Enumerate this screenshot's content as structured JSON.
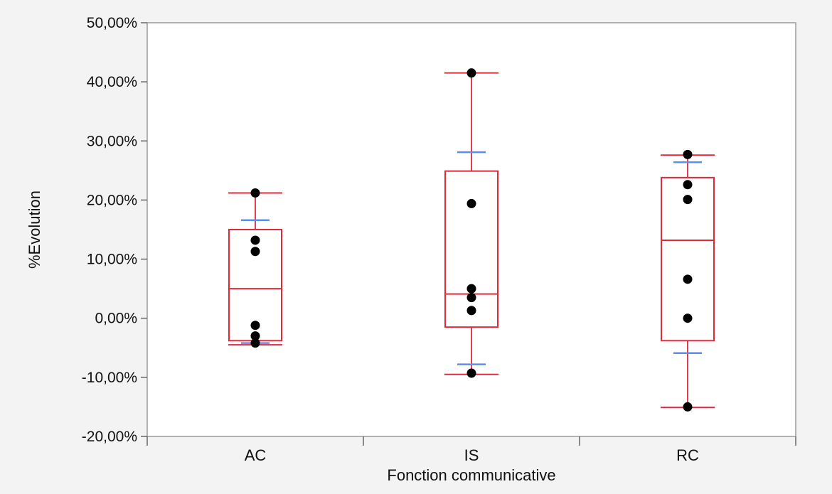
{
  "chart_data": {
    "type": "boxplot",
    "title": "",
    "xlabel": "Fonction communicative",
    "ylabel": "%Evolution",
    "ylim": [
      -20,
      50
    ],
    "y_ticks": [
      {
        "value": 50,
        "label": "50,00%"
      },
      {
        "value": 40,
        "label": "40,00%"
      },
      {
        "value": 30,
        "label": "30,00%"
      },
      {
        "value": 20,
        "label": "20,00%"
      },
      {
        "value": 10,
        "label": "10,00%"
      },
      {
        "value": 0,
        "label": "0,00%"
      },
      {
        "value": -10,
        "label": "-10,00%"
      },
      {
        "value": -20,
        "label": "-20,00%"
      }
    ],
    "categories": [
      "AC",
      "IS",
      "RC"
    ],
    "groups": [
      {
        "name": "AC",
        "whisker_low": -4.5,
        "q1": -3.8,
        "median": 5.0,
        "q3": 15.0,
        "whisker_high": 21.2,
        "blue_marks": [
          16.6,
          -4.2
        ],
        "points": [
          21.2,
          13.2,
          11.3,
          -1.2,
          -3.0,
          -4.2
        ]
      },
      {
        "name": "IS",
        "whisker_low": -9.5,
        "q1": -1.5,
        "median": 4.1,
        "q3": 24.9,
        "whisker_high": 41.5,
        "blue_marks": [
          28.1,
          -7.8
        ],
        "points": [
          41.5,
          19.4,
          5.0,
          3.5,
          1.3,
          -9.3
        ]
      },
      {
        "name": "RC",
        "whisker_low": -15.1,
        "q1": -3.8,
        "median": 13.2,
        "q3": 23.8,
        "whisker_high": 27.6,
        "blue_marks": [
          26.4,
          -5.9
        ],
        "points": [
          27.7,
          22.6,
          20.1,
          6.6,
          0.0,
          -15.0
        ]
      }
    ],
    "colors": {
      "box": "#e0293a",
      "blue_mark": "#5b8ef0",
      "point": "#000000",
      "plot_background": "#ffffff",
      "page_background": "#f3f3f3",
      "frame": "#9a9a9a"
    },
    "grid": false,
    "legend": "none"
  }
}
